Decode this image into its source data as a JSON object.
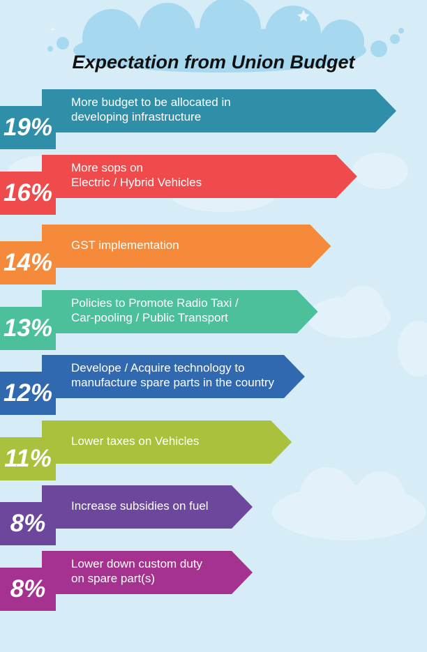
{
  "chart_data": {
    "type": "bar",
    "title": "Expectation from Union Budget",
    "categories": [
      "More budget to be allocated in\ndeveloping infrastructure",
      "More sops on\nElectric / Hybrid Vehicles",
      "GST implementation",
      "Policies to Promote Radio Taxi /\nCar-pooling / Public Transport",
      "Develope / Acquire technology to\nmanufacture spare parts in the country",
      "Lower taxes on Vehicles",
      "Increase subsidies on fuel",
      "Lower down custom duty\non spare part(s)"
    ],
    "values": [
      19,
      16,
      14,
      13,
      12,
      11,
      8,
      8
    ],
    "value_labels": [
      "19%",
      "16%",
      "14%",
      "13%",
      "12%",
      "11%",
      "8%",
      "8%"
    ],
    "colors": [
      "#2f8fa8",
      "#ef4b4c",
      "#f48a3a",
      "#4cc09b",
      "#3069b0",
      "#a9c13d",
      "#6c479c",
      "#a6328f"
    ],
    "dark_colors": [
      "#1d5a6a",
      "#8c2a2b",
      "#9a5522",
      "#2c7a62",
      "#1c3f6b",
      "#657425",
      "#402a5d",
      "#641e56"
    ]
  }
}
